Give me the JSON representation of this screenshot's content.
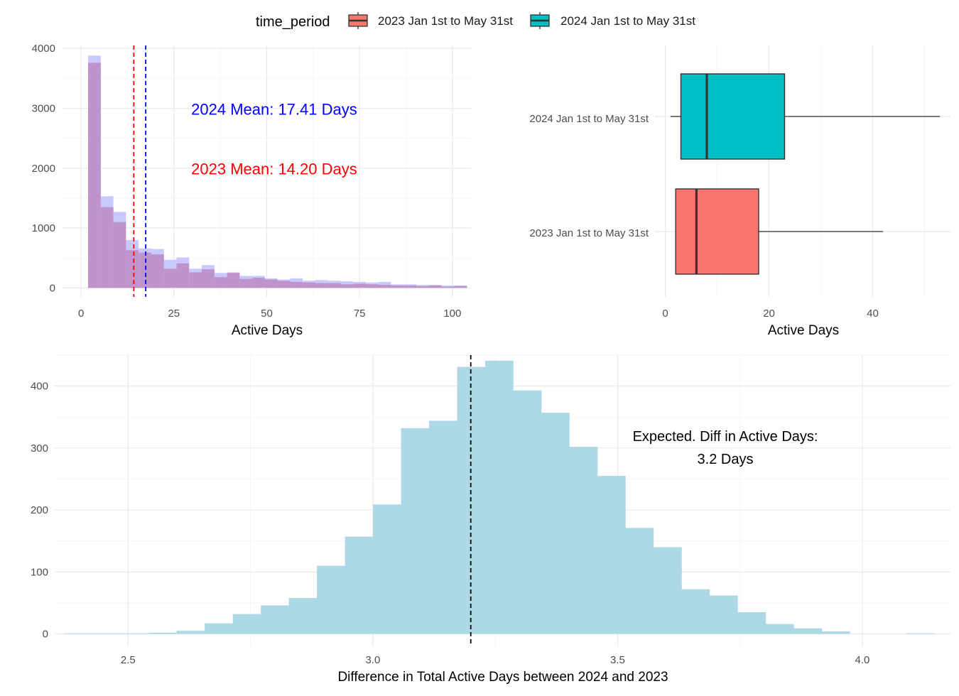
{
  "legend": {
    "title": "time_period",
    "items": [
      {
        "label": "2023 Jan 1st to May 31st",
        "color": "#F8766D"
      },
      {
        "label": "2024 Jan 1st to May 31st",
        "color": "#00BFC4"
      }
    ],
    "position": "top"
  },
  "chart_data": [
    {
      "type": "histogram",
      "xlabel": "Active Days",
      "ylabel": "",
      "xlim": [
        -5,
        105
      ],
      "ylim": [
        -150,
        4050
      ],
      "xticks": [
        0,
        25,
        50,
        75,
        100
      ],
      "yticks": [
        0,
        1000,
        2000,
        3000,
        4000
      ],
      "bin_width": 3.4,
      "bin_start": 1.9,
      "colors": {
        "2023": "#BF93CC",
        "2024": "#C9C9FD",
        "mean_2023": "#FF0000",
        "mean_2024": "#0000FF"
      },
      "series": [
        {
          "name": "2023 Jan 1st to May 31st",
          "values": [
            3760,
            1350,
            1100,
            630,
            590,
            560,
            320,
            410,
            260,
            310,
            180,
            250,
            150,
            170,
            140,
            120,
            100,
            90,
            80,
            80,
            60,
            70,
            60,
            50,
            40,
            40,
            30,
            40,
            20,
            30
          ]
        },
        {
          "name": "2024 Jan 1st to May 31st",
          "values": [
            3880,
            1530,
            1270,
            800,
            660,
            650,
            470,
            510,
            320,
            380,
            250,
            260,
            200,
            200,
            160,
            140,
            160,
            120,
            130,
            120,
            110,
            100,
            90,
            100,
            60,
            60,
            50,
            50,
            40,
            40
          ]
        }
      ],
      "mean_lines": [
        {
          "x": 14.2,
          "color": "#FF0000"
        },
        {
          "x": 17.41,
          "color": "#0000FF"
        }
      ],
      "annotations": [
        {
          "text": "2024 Mean: 17.41 Days",
          "color": "#0000FF",
          "x": 52,
          "y": 2990
        },
        {
          "text": "2023 Mean: 14.20 Days",
          "color": "#FF0000",
          "x": 52,
          "y": 1990
        }
      ]
    },
    {
      "type": "boxplot",
      "orientation": "horizontal",
      "xlabel": "Active Days",
      "xlim": [
        -2,
        55
      ],
      "xticks": [
        0,
        20,
        40
      ],
      "categories": [
        "2023 Jan 1st to May 31st",
        "2024 Jan 1st to May 31st"
      ],
      "boxes": [
        {
          "name": "2023 Jan 1st to May 31st",
          "min": 2,
          "q1": 2,
          "median": 6,
          "q3": 18,
          "max": 42,
          "color": "#F8766D"
        },
        {
          "name": "2024 Jan 1st to May 31st",
          "min": 1,
          "q1": 3,
          "median": 8,
          "q3": 23,
          "max": 53,
          "color": "#00BFC4"
        }
      ]
    },
    {
      "type": "histogram",
      "xlabel": "Difference in Total Active Days between 2024 and 2023",
      "ylabel": "",
      "xlim": [
        2.35,
        4.18
      ],
      "ylim": [
        -20,
        450
      ],
      "xticks": [
        2.5,
        3.0,
        3.5,
        4.0
      ],
      "xtick_labels": [
        "2.5",
        "3.0",
        "3.5",
        "4.0"
      ],
      "yticks": [
        0,
        100,
        200,
        300,
        400
      ],
      "bin_start": 2.37,
      "bin_width": 0.0573,
      "color": "#ADD8E6",
      "values": [
        1,
        1,
        1,
        2,
        5,
        17,
        32,
        46,
        58,
        110,
        157,
        209,
        332,
        344,
        431,
        441,
        393,
        357,
        302,
        255,
        171,
        140,
        72,
        62,
        35,
        16,
        9,
        4,
        0,
        0,
        1
      ],
      "mean_line": {
        "x": 3.2,
        "color": "#000000"
      },
      "annotation": {
        "lines": [
          "Expected. Diff in Active Days:",
          "3.2 Days"
        ],
        "x": 3.72,
        "y": 318
      }
    }
  ]
}
